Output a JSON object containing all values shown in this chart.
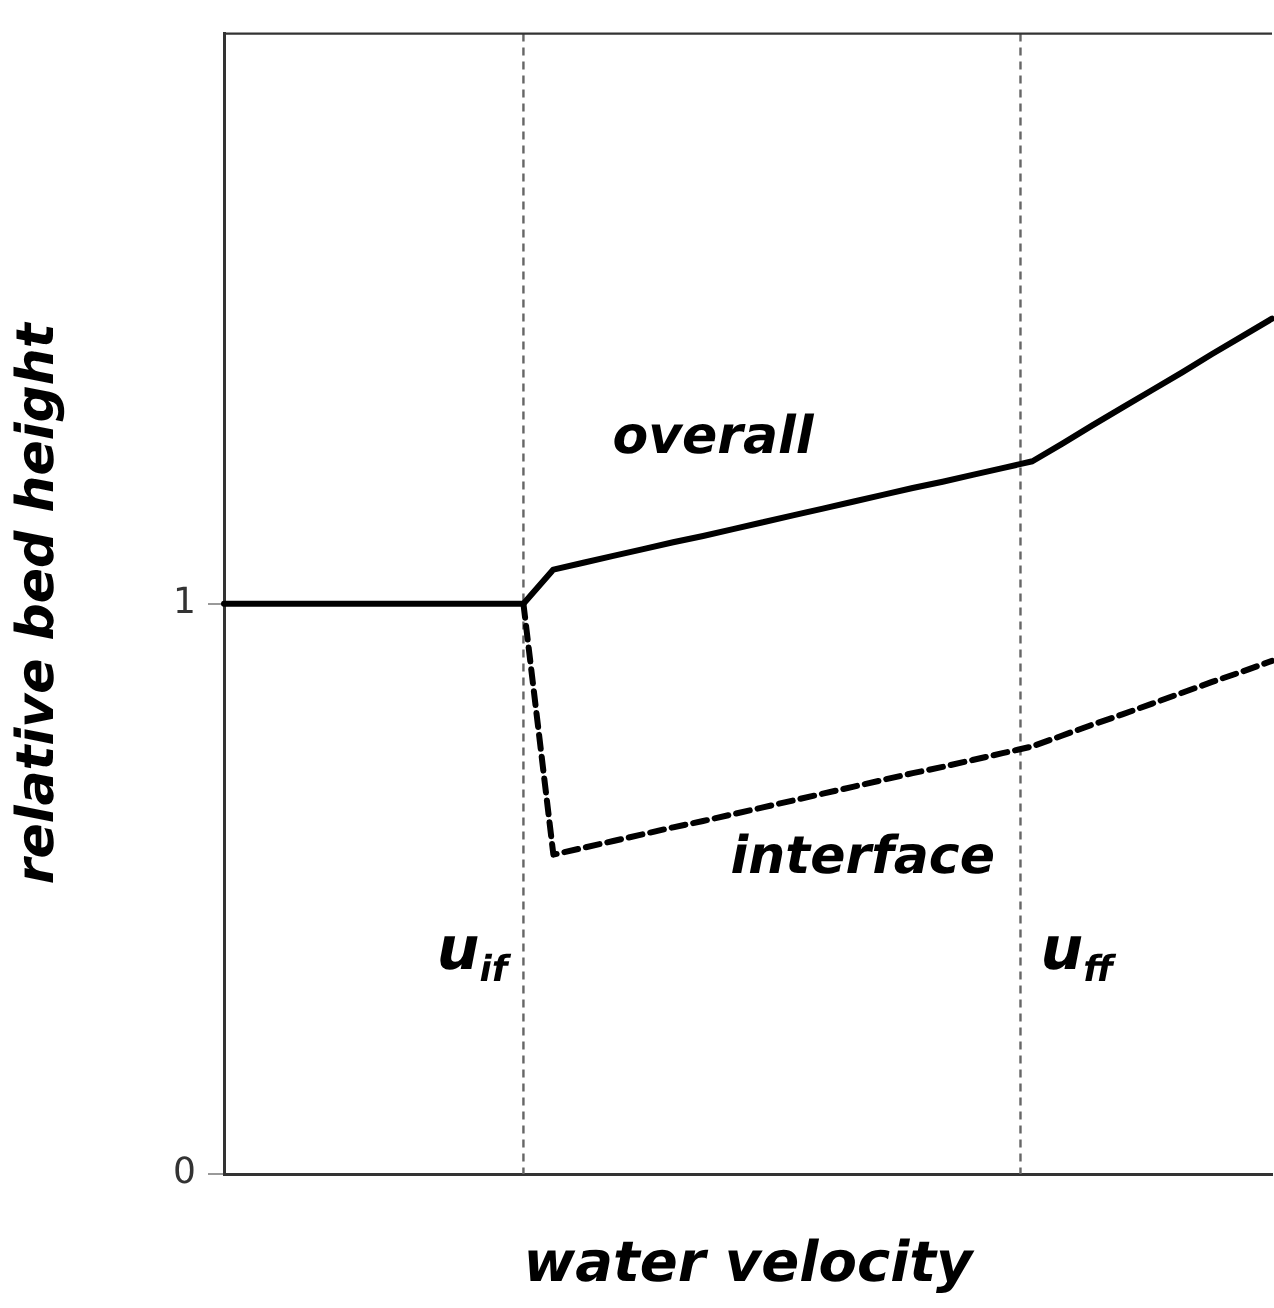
{
  "chart_data": {
    "type": "line",
    "xlabel": "water velocity",
    "ylabel": "relative bed height",
    "ylim": [
      0,
      2
    ],
    "yticks": [
      0,
      1
    ],
    "tick_labels": "y",
    "grid": false,
    "legend": false,
    "marker": "none",
    "categories": [
      null,
      null,
      null,
      null,
      null,
      null,
      null,
      null,
      null,
      null,
      null,
      null,
      null,
      null,
      null,
      null,
      null,
      null,
      null,
      null,
      null,
      null,
      null,
      null,
      null,
      null,
      null,
      null,
      null,
      null,
      null,
      null,
      null,
      null,
      null,
      null
    ],
    "series": [
      {
        "name": "overall",
        "color": "#000000",
        "line_style": "solid",
        "values": [
          1,
          1,
          1,
          1,
          1,
          1,
          1,
          1,
          1,
          1,
          1,
          1.06,
          1.072,
          1.084,
          1.096,
          1.108,
          1.119,
          1.131,
          1.143,
          1.155,
          1.167,
          1.179,
          1.191,
          1.203,
          1.214,
          1.226,
          1.238,
          1.25,
          1.281,
          1.313,
          1.344,
          1.375,
          1.406,
          1.438,
          1.469,
          1.5
        ]
      },
      {
        "name": "interface",
        "color": "#000000",
        "line_style": "dashed",
        "values": [
          null,
          null,
          null,
          null,
          null,
          null,
          null,
          null,
          null,
          null,
          1,
          0.56,
          0.572,
          0.584,
          0.596,
          0.608,
          0.619,
          0.631,
          0.643,
          0.655,
          0.667,
          0.679,
          0.691,
          0.703,
          0.714,
          0.726,
          0.738,
          0.75,
          0.769,
          0.788,
          0.806,
          0.825,
          0.844,
          0.863,
          0.881,
          0.9
        ]
      }
    ],
    "annotations": [
      "u$_{if}$",
      "u$_{ff}$"
    ]
  }
}
